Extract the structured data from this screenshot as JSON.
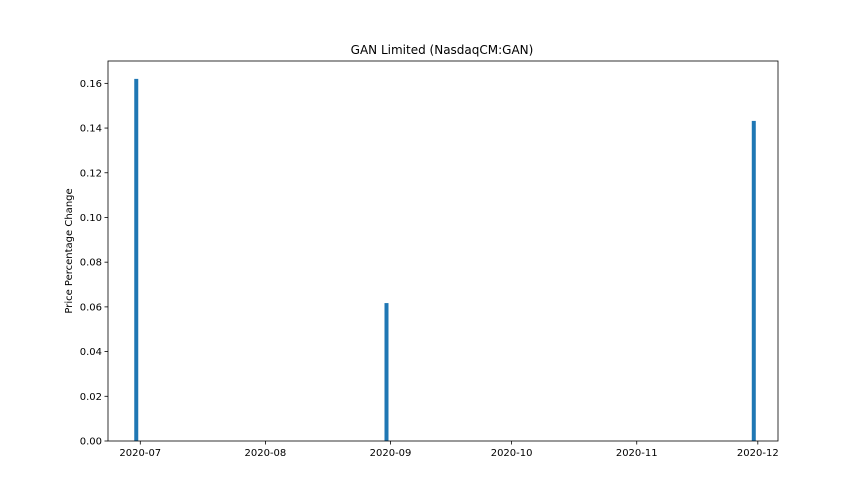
{
  "chart_data": {
    "type": "bar",
    "title": "GAN Limited (NasdaqCM:GAN)",
    "xlabel": "",
    "ylabel": "Price Percentage Change",
    "x": [
      "2020-06-30",
      "2020-08-31",
      "2020-11-30"
    ],
    "values": [
      0.162,
      0.0617,
      0.1432
    ],
    "xlim": [
      "2020-06-23",
      "2020-12-06"
    ],
    "ylim": [
      0,
      0.17
    ],
    "x_ticks": [
      "2020-07-01",
      "2020-08-01",
      "2020-09-01",
      "2020-10-01",
      "2020-11-01",
      "2020-12-01"
    ],
    "x_tick_labels": [
      "2020-07",
      "2020-08",
      "2020-09",
      "2020-10",
      "2020-11",
      "2020-12"
    ],
    "y_ticks": [
      0.0,
      0.02,
      0.04,
      0.06,
      0.08,
      0.1,
      0.12,
      0.14,
      0.16
    ],
    "y_tick_labels": [
      "0.00",
      "0.02",
      "0.04",
      "0.06",
      "0.08",
      "0.10",
      "0.12",
      "0.14",
      "0.16"
    ],
    "bar_color": "#1f77b4",
    "grid": false,
    "legend": "none"
  }
}
